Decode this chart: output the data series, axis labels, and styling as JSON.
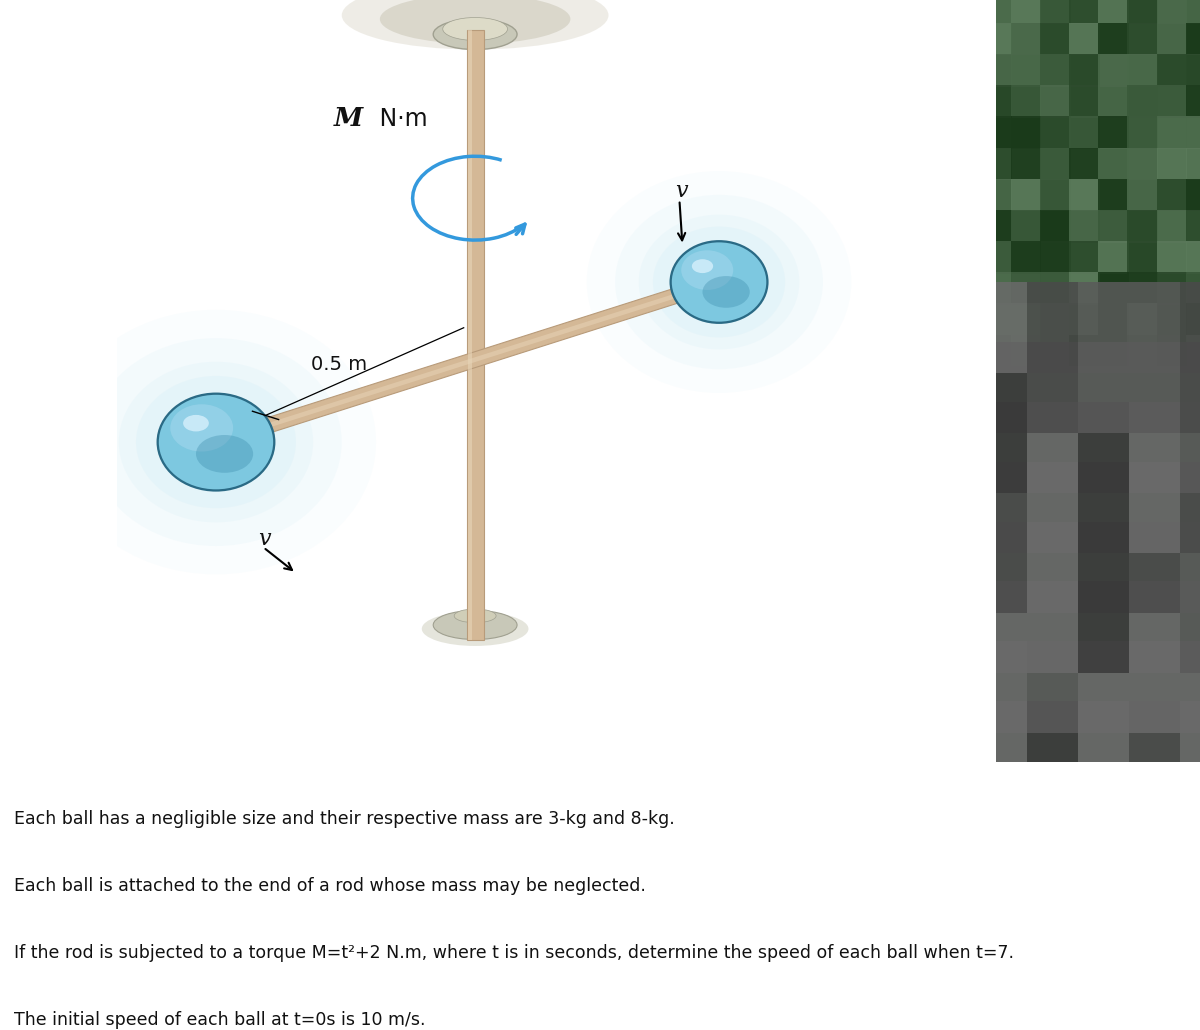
{
  "bg_color": "#ffffff",
  "rod_color": "#D4B896",
  "rod_edge": "#B89B7A",
  "ball_color": "#7DC8E0",
  "ball_highlight": "#AADEEE",
  "ball_dark": "#4A9BB5",
  "ball_outline": "#2A6A85",
  "pole_gray": "#C8C8B8",
  "pole_gray_dark": "#A0A090",
  "ceiling_color": "#D8D5C8",
  "ceiling_shadow": "#EEECE0",
  "torque_color": "#3399DD",
  "text_color": "#000000",
  "label_M": "M",
  "label_Nm": " N·m",
  "label_v": "v",
  "label_dist": "0.5 m",
  "line1": "Each ball has a negligible size and their respective mass are 3-kg and 8-kg.",
  "line2": "Each ball is attached to the end of a rod whose mass may be neglected.",
  "line3": "If the rod is subjected to a torque M=t²+2 N.m, where t is in seconds, determine the speed of each ball when t=7.",
  "line4": "The initial speed of each ball at t=0s is 10 m/s.",
  "figsize": [
    12.0,
    10.3
  ],
  "dpi": 100
}
